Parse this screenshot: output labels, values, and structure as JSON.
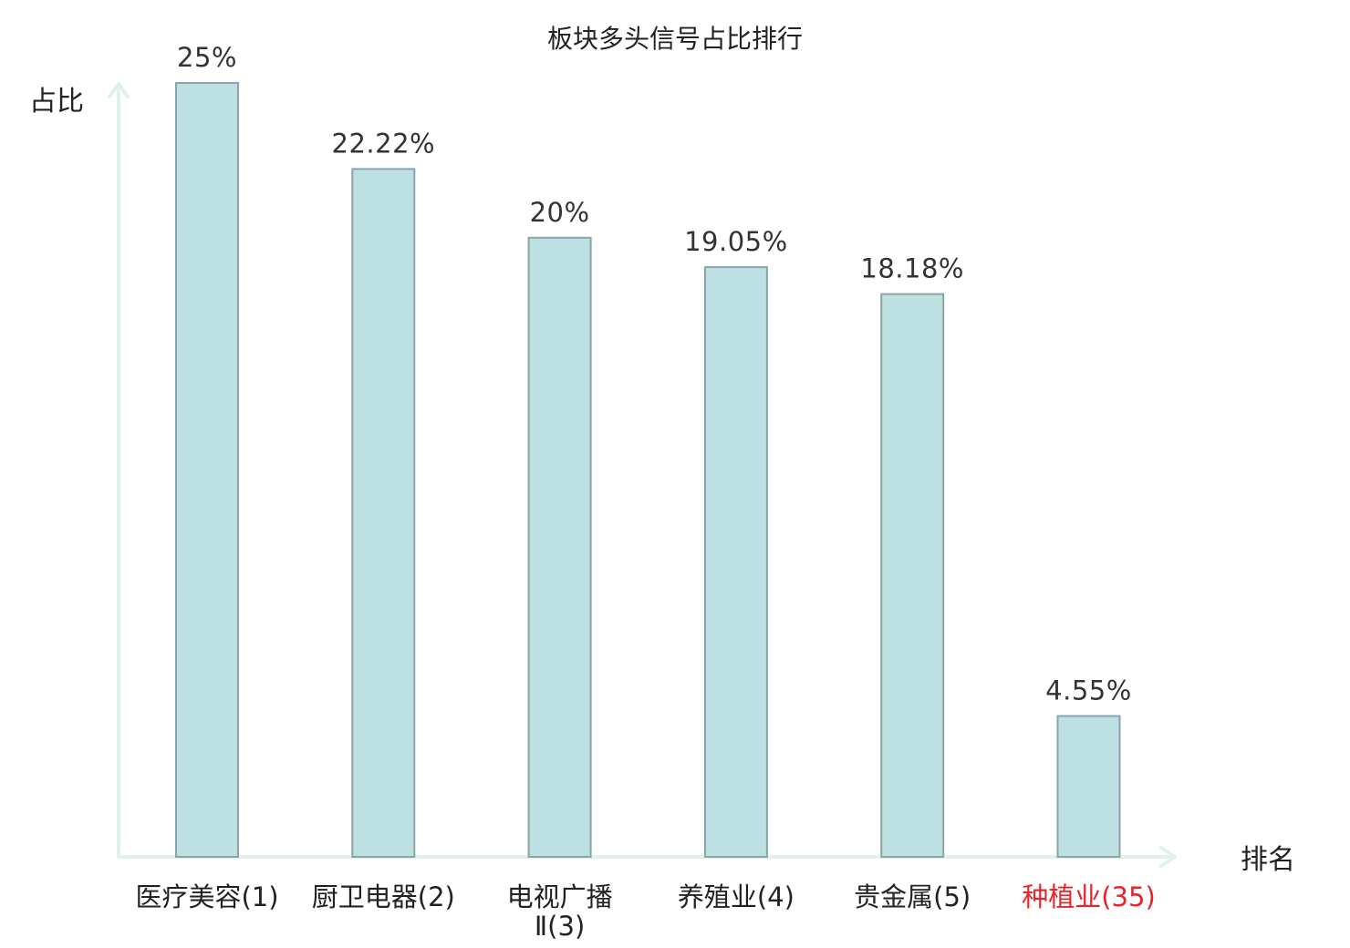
{
  "chart_data": {
    "type": "bar",
    "title": "板块多头信号占比排行",
    "ylabel": "占比",
    "xlabel": "排名",
    "ylim": [
      0,
      25
    ],
    "grid": false,
    "categories": [
      {
        "lines": [
          "医疗美容(1)"
        ],
        "highlight": false
      },
      {
        "lines": [
          "厨卫电器(2)"
        ],
        "highlight": false
      },
      {
        "lines": [
          "电视广播",
          "Ⅱ(3)"
        ],
        "highlight": false
      },
      {
        "lines": [
          "养殖业(4)"
        ],
        "highlight": false
      },
      {
        "lines": [
          "贵金属(5)"
        ],
        "highlight": false
      },
      {
        "lines": [
          "种植业(35)"
        ],
        "highlight": true
      }
    ],
    "values": [
      25,
      22.22,
      20,
      19.05,
      18.18,
      4.55
    ],
    "value_labels": [
      "25%",
      "22.22%",
      "20%",
      "19.05%",
      "18.18%",
      "4.55%"
    ]
  },
  "colors": {
    "bar_fill": "#bde0e3",
    "bar_stroke": "#8aa4a7",
    "axis": "#dff2ef",
    "text": "#222222",
    "highlight": "#e8232a"
  }
}
